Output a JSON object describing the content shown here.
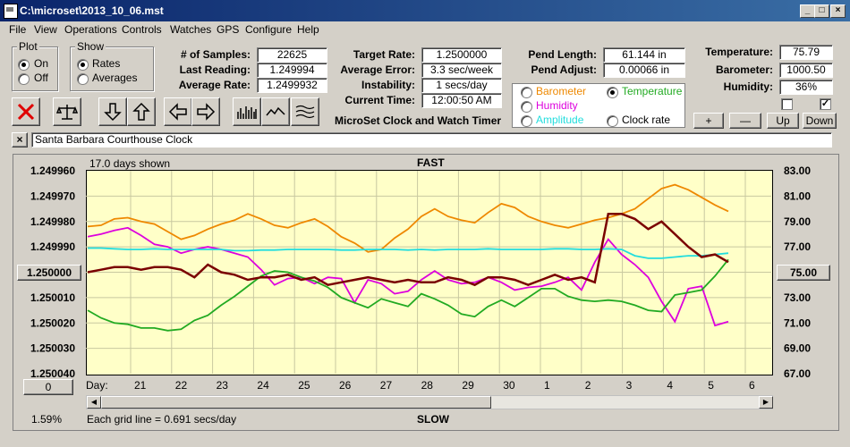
{
  "window": {
    "title": "C:\\microset\\2013_10_06.mst"
  },
  "menu": [
    "File",
    "View",
    "Operations",
    "Controls",
    "Watches",
    "GPS",
    "Configure",
    "Help"
  ],
  "plot_group": {
    "title": "Plot",
    "on": "On",
    "off": "Off",
    "selected": "On"
  },
  "show_group": {
    "title": "Show",
    "rates": "Rates",
    "averages": "Averages",
    "selected": "Rates"
  },
  "stats": {
    "samples_label": "# of Samples:",
    "samples": "22625",
    "last_label": "Last Reading:",
    "last": "1.249994",
    "avg_label": "Average Rate:",
    "avg": "1.2499932",
    "target_label": "Target Rate:",
    "target": "1.2500000",
    "avgerr_label": "Average Error:",
    "avgerr": "3.3 sec/week",
    "instab_label": "Instability:",
    "instab": "1 secs/day",
    "time_label": "Current Time:",
    "time": "12:00:50 AM",
    "pendlen_label": "Pend Length:",
    "pendlen": "61.144 in",
    "pendadj_label": "Pend Adjust:",
    "pendadj": "0.00066 in",
    "temp_label": "Temperature:",
    "temp": "75.79",
    "baro_label": "Barometer:",
    "baro": "1000.50",
    "hum_label": "Humidity:",
    "hum": "36%"
  },
  "app_title": "MicroSet Clock and Watch Timer",
  "sensor_options": {
    "barometer": "Barometer",
    "temperature": "Temperature",
    "humidity": "Humidity",
    "amplitude": "Amplitude",
    "clockrate": "Clock rate",
    "selected": "Temperature"
  },
  "right_buttons": {
    "plus": "+",
    "minus": "—",
    "up": "Up",
    "down": "Down"
  },
  "check_right": "✓",
  "close_x": "×",
  "clock_name": "Santa Barbara Courthouse Clock",
  "chart_header": {
    "days_shown": "17.0 days shown",
    "fast": "FAST",
    "slow": "SLOW"
  },
  "footer": {
    "percent": "1.59%",
    "grid_note": "Each grid line = 0.691 secs/day",
    "day_label": "Day:"
  },
  "center_value": "1.250000",
  "right_center_value": "75.00",
  "zero_button": "0",
  "colors": {
    "rate": "#7a0000",
    "temperature": "#22aa22",
    "barometer": "#ee8800",
    "humidity": "#dd00dd",
    "amplitude": "#22dddd"
  },
  "chart_data": {
    "type": "line",
    "x_tick_labels": [
      "21",
      "22",
      "23",
      "24",
      "25",
      "26",
      "27",
      "28",
      "29",
      "30",
      "1",
      "2",
      "3",
      "4",
      "5",
      "6"
    ],
    "y_left_ticks": [
      "1.249960",
      "1.249970",
      "1.249980",
      "1.249990",
      "1.250000",
      "1.250010",
      "1.250020",
      "1.250030",
      "1.250040"
    ],
    "y_right_ticks": [
      "83.00",
      "81.00",
      "79.00",
      "77.00",
      "75.00",
      "73.00",
      "71.00",
      "69.00",
      "67.00"
    ],
    "ylim_left": [
      1.24996,
      1.25004
    ],
    "ylim_right": [
      67,
      83
    ],
    "series": [
      {
        "key": "barometer",
        "values": [
          78.6,
          78.7,
          79.2,
          79.3,
          79.0,
          78.8,
          78.2,
          77.6,
          77.9,
          78.4,
          78.8,
          79.1,
          79.6,
          79.2,
          78.7,
          78.5,
          78.9,
          79.2,
          78.6,
          77.8,
          77.3,
          76.6,
          76.8,
          77.7,
          78.4,
          79.4,
          80.0,
          79.4,
          79.1,
          78.9,
          79.7,
          80.4,
          80.1,
          79.4,
          79.0,
          78.7,
          78.5,
          78.8,
          79.1,
          79.3,
          79.6,
          80.0,
          80.8,
          81.6,
          81.9,
          81.5,
          80.9,
          80.3,
          79.8
        ]
      },
      {
        "key": "humidity",
        "values": [
          77.8,
          78.0,
          78.3,
          78.5,
          77.9,
          77.2,
          77.0,
          76.5,
          76.8,
          77.0,
          76.8,
          76.5,
          76.2,
          75.2,
          74.0,
          74.5,
          74.6,
          74.1,
          74.6,
          74.5,
          72.6,
          74.4,
          74.1,
          73.3,
          73.5,
          74.4,
          75.1,
          74.4,
          74.1,
          74.2,
          74.6,
          74.2,
          73.6,
          73.8,
          73.9,
          74.2,
          74.6,
          73.6,
          75.8,
          77.6,
          76.4,
          75.6,
          74.6,
          72.7,
          71.1,
          73.7,
          73.9,
          70.8,
          71.1
        ]
      },
      {
        "key": "amplitude",
        "values": [
          76.9,
          76.9,
          76.85,
          76.8,
          76.8,
          76.85,
          76.8,
          76.8,
          76.8,
          76.8,
          76.8,
          76.7,
          76.7,
          76.75,
          76.75,
          76.8,
          76.8,
          76.8,
          76.8,
          76.75,
          76.75,
          76.8,
          76.8,
          76.8,
          76.75,
          76.8,
          76.75,
          76.8,
          76.8,
          76.8,
          76.85,
          76.8,
          76.8,
          76.8,
          76.8,
          76.85,
          76.85,
          76.8,
          76.8,
          76.85,
          76.8,
          76.3,
          76.1,
          76.1,
          76.2,
          76.3,
          76.3,
          76.4,
          76.5
        ]
      },
      {
        "key": "temperature",
        "values": [
          72.0,
          71.4,
          71.0,
          70.9,
          70.6,
          70.6,
          70.4,
          70.5,
          71.2,
          71.6,
          72.4,
          73.1,
          73.9,
          74.7,
          75.1,
          75.0,
          74.6,
          74.3,
          73.8,
          73.0,
          72.6,
          72.2,
          72.9,
          72.6,
          72.3,
          73.3,
          72.9,
          72.4,
          71.7,
          71.5,
          72.3,
          72.8,
          72.3,
          73.0,
          73.7,
          73.7,
          73.1,
          72.8,
          72.7,
          72.8,
          72.7,
          72.4,
          72.0,
          71.9,
          73.2,
          73.4,
          73.6,
          74.7,
          76.0
        ]
      },
      {
        "key": "rate",
        "values": [
          1.25,
          1.249999,
          1.249998,
          1.249998,
          1.249999,
          1.249998,
          1.249998,
          1.249999,
          1.250002,
          1.249997,
          1.25,
          1.250001,
          1.250003,
          1.250002,
          1.250002,
          1.250001,
          1.250003,
          1.250002,
          1.250005,
          1.250004,
          1.250003,
          1.250002,
          1.250003,
          1.250004,
          1.250003,
          1.250004,
          1.250004,
          1.250002,
          1.250003,
          1.250005,
          1.250002,
          1.250002,
          1.250003,
          1.250005,
          1.250003,
          1.250001,
          1.250003,
          1.250002,
          1.250004,
          1.249977,
          1.249977,
          1.249979,
          1.249983,
          1.24998,
          1.249985,
          1.24999,
          1.249994,
          1.249993,
          1.249996
        ]
      }
    ]
  }
}
